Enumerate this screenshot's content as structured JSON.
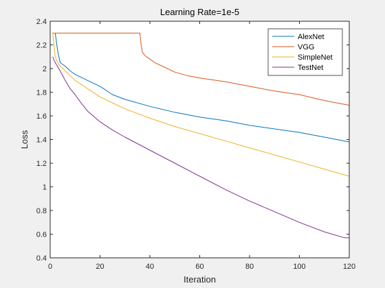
{
  "chart_data": {
    "type": "line",
    "title": "Learning Rate=1e-5",
    "xlabel": "Iteration",
    "ylabel": "Loss",
    "xlim": [
      0,
      120
    ],
    "ylim": [
      0.4,
      2.4
    ],
    "x_ticks": [
      "0",
      "20",
      "40",
      "60",
      "80",
      "100",
      "120"
    ],
    "y_ticks": [
      "0.4",
      "0.6",
      "0.8",
      "1",
      "1.2",
      "1.4",
      "1.6",
      "1.8",
      "2",
      "2.2",
      "2.4"
    ],
    "grid": false,
    "legend_position": "top-right",
    "series": [
      {
        "name": "AlexNet",
        "color": "#0072bd",
        "x": [
          2,
          3,
          4,
          6,
          8,
          10,
          15,
          20,
          25,
          30,
          40,
          50,
          60,
          70,
          80,
          90,
          100,
          110,
          120
        ],
        "y": [
          2.3,
          2.15,
          2.05,
          2.02,
          1.98,
          1.95,
          1.9,
          1.85,
          1.78,
          1.74,
          1.68,
          1.63,
          1.59,
          1.56,
          1.52,
          1.49,
          1.46,
          1.42,
          1.38
        ]
      },
      {
        "name": "VGG",
        "color": "#d95319",
        "x": [
          1,
          10,
          20,
          30,
          36,
          36.5,
          37,
          38,
          40,
          42,
          45,
          50,
          55,
          60,
          70,
          80,
          90,
          100,
          110,
          120
        ],
        "y": [
          2.3,
          2.3,
          2.3,
          2.3,
          2.3,
          2.2,
          2.14,
          2.11,
          2.08,
          2.05,
          2.02,
          1.97,
          1.94,
          1.92,
          1.89,
          1.85,
          1.81,
          1.78,
          1.73,
          1.69
        ]
      },
      {
        "name": "SimpleNet",
        "color": "#edb120",
        "x": [
          1,
          2,
          3,
          4,
          6,
          8,
          10,
          15,
          20,
          25,
          30,
          40,
          50,
          60,
          70,
          80,
          90,
          100,
          110,
          120
        ],
        "y": [
          2.3,
          2.1,
          2.05,
          2.02,
          1.98,
          1.94,
          1.9,
          1.83,
          1.76,
          1.71,
          1.66,
          1.58,
          1.51,
          1.45,
          1.39,
          1.33,
          1.27,
          1.21,
          1.15,
          1.09
        ]
      },
      {
        "name": "TestNet",
        "color": "#7e2f8e",
        "x": [
          1,
          2,
          4,
          6,
          8,
          10,
          12,
          15,
          20,
          25,
          30,
          40,
          50,
          60,
          70,
          80,
          90,
          100,
          110,
          118,
          120
        ],
        "y": [
          2.1,
          2.05,
          1.98,
          1.9,
          1.83,
          1.78,
          1.72,
          1.64,
          1.55,
          1.48,
          1.42,
          1.31,
          1.2,
          1.09,
          0.98,
          0.88,
          0.79,
          0.7,
          0.62,
          0.57,
          0.57
        ]
      }
    ]
  }
}
